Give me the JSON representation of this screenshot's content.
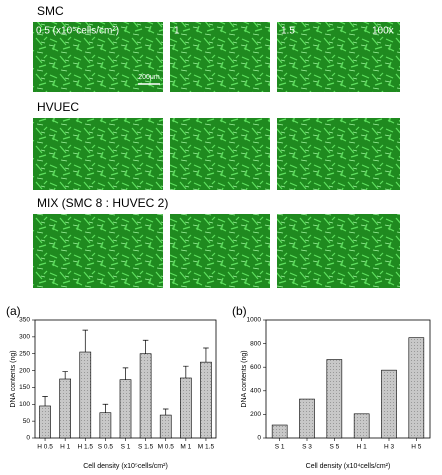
{
  "images": {
    "rows": [
      "SMC",
      "HVUEC",
      "MIX (SMC 8 : HUVEC 2)"
    ],
    "columns": [
      "0.5 (x10⁵cells/cm²)",
      "1",
      "1.5"
    ],
    "magnification": "100x",
    "scale_bar": "200μm"
  },
  "chart_data": [
    {
      "type": "bar",
      "panel": "(a)",
      "ylabel": "DNA contents (ng)",
      "xlabel": "Cell density (x10⁵cells/cm²)",
      "categories": [
        "H 0.5",
        "H 1",
        "H 1.5",
        "S 0.5",
        "S 1",
        "S 1.5",
        "M 0.5",
        "M 1",
        "M 1.5"
      ],
      "values": [
        95,
        175,
        255,
        75,
        173,
        250,
        68,
        178,
        225
      ],
      "errors": [
        28,
        22,
        65,
        25,
        35,
        40,
        18,
        35,
        42
      ],
      "color": "#c8c8c8",
      "ylim": [
        0,
        350
      ],
      "yticks": [
        0,
        50,
        100,
        150,
        200,
        250,
        300,
        350
      ]
    },
    {
      "type": "bar",
      "panel": "(b)",
      "ylabel": "DNA contents (ng)",
      "xlabel": "Cell density (x10⁴cells/cm²)",
      "categories": [
        "S 1",
        "S 3",
        "S 5",
        "H 1",
        "H 3",
        "H 5"
      ],
      "values": [
        110,
        330,
        665,
        205,
        575,
        850
      ],
      "color": "#c8c8c8",
      "ylim": [
        0,
        1000
      ],
      "yticks": [
        0,
        200,
        400,
        600,
        800,
        1000
      ]
    }
  ]
}
